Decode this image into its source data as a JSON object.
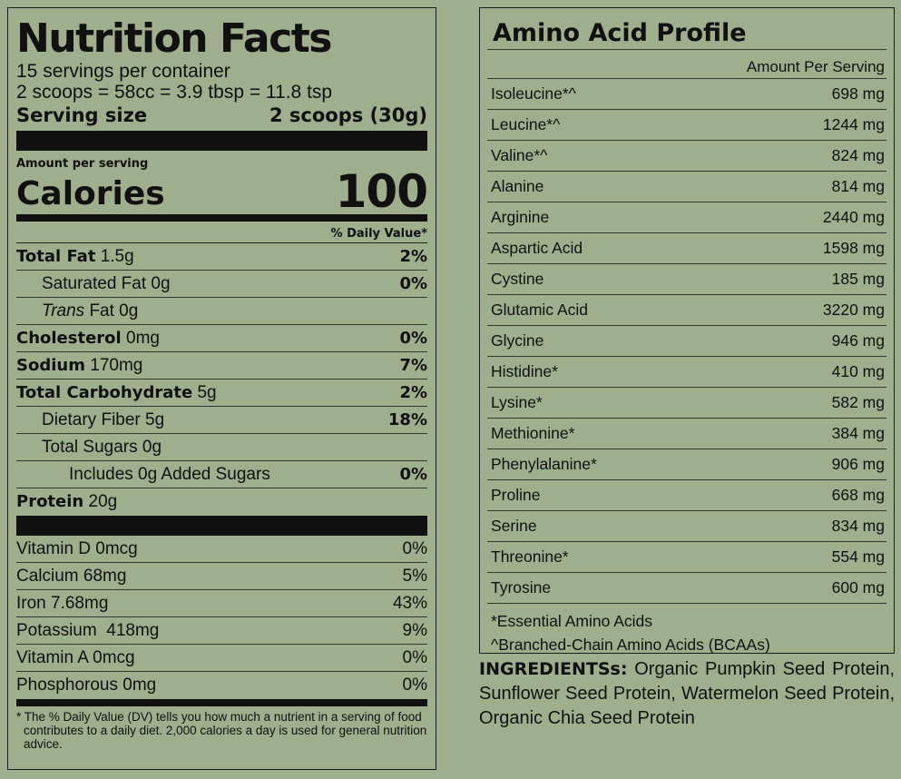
{
  "nutrition": {
    "title": "Nutrition Facts",
    "servings_per_container": "15 servings per container",
    "scoop_equivalent": "2 scoops = 58cc = 3.9 tbsp = 11.8 tsp",
    "serving_size_label": "Serving size",
    "serving_size_value": "2 scoops (30g)",
    "amount_per_serving": "Amount per serving",
    "calories_label": "Calories",
    "calories_value": "100",
    "daily_value_header": "% Daily Value*",
    "nutrients": [
      {
        "bold": "Total Fat",
        "rest": " 1.5g",
        "pct": "2%"
      },
      {
        "bold": "",
        "rest": "Saturated Fat 0g",
        "pct": "0%"
      },
      {
        "italic": "Trans",
        "rest": " Fat 0g",
        "pct": ""
      },
      {
        "bold": "Cholesterol",
        "rest": " 0mg",
        "pct": "0%"
      },
      {
        "bold": "Sodium",
        "rest": " 170mg",
        "pct": "7%"
      },
      {
        "bold": "Total Carbohydrate",
        "rest": " 5g",
        "pct": "2%"
      },
      {
        "bold": "",
        "rest": "Dietary Fiber 5g",
        "pct": "18%"
      },
      {
        "bold": "",
        "rest": "Total Sugars 0g",
        "pct": ""
      },
      {
        "bold": "",
        "rest": "Includes 0g Added Sugars",
        "pct": "0%"
      },
      {
        "bold": "Protein",
        "rest": " 20g",
        "pct": ""
      }
    ],
    "vitamins": [
      {
        "name": "Vitamin D 0mcg",
        "pct": "0%"
      },
      {
        "name": "Calcium 68mg",
        "pct": "5%"
      },
      {
        "name": "Iron 7.68mg",
        "pct": "43%"
      },
      {
        "name": "Potassium  418mg",
        "pct": "9%"
      },
      {
        "name": "Vitamin A 0mcg",
        "pct": "0%"
      },
      {
        "name": "Phosphorous 0mg",
        "pct": "0%"
      }
    ],
    "footnote": "* The % Daily Value (DV) tells you how much a nutrient in a serving of food contributes to a daily diet. 2,000 calories a day is used for general nutrition advice."
  },
  "amino": {
    "title": "Amino Acid Profile",
    "header": "Amount Per Serving",
    "rows": [
      {
        "name": "Isoleucine*^",
        "value": "698 mg"
      },
      {
        "name": "Leucine*^",
        "value": "1244 mg"
      },
      {
        "name": "Valine*^",
        "value": "824 mg"
      },
      {
        "name": "Alanine",
        "value": "814 mg"
      },
      {
        "name": "Arginine",
        "value": "2440 mg"
      },
      {
        "name": "Aspartic Acid",
        "value": "1598 mg"
      },
      {
        "name": "Cystine",
        "value": "185 mg"
      },
      {
        "name": "Glutamic Acid",
        "value": "3220 mg"
      },
      {
        "name": "Glycine",
        "value": "946 mg"
      },
      {
        "name": "Histidine*",
        "value": "410 mg"
      },
      {
        "name": "Lysine*",
        "value": "582 mg"
      },
      {
        "name": "Methionine*",
        "value": "384 mg"
      },
      {
        "name": "Phenylalanine*",
        "value": "906 mg"
      },
      {
        "name": "Proline",
        "value": "668 mg"
      },
      {
        "name": "Serine",
        "value": "834 mg"
      },
      {
        "name": "Threonine*",
        "value": "554 mg"
      },
      {
        "name": "Tyrosine",
        "value": "600 mg"
      }
    ],
    "note_essential": "*Essential Amino Acids",
    "note_bcaa": "^Branched-Chain Amino Acids (BCAAs)"
  },
  "ingredients": {
    "label": "INGREDIENTSs:",
    "text": " Organic Pumpkin Seed Protein, Sunflower Seed Protein, Watermelon Seed Protein, Organic Chia Seed Protein"
  }
}
